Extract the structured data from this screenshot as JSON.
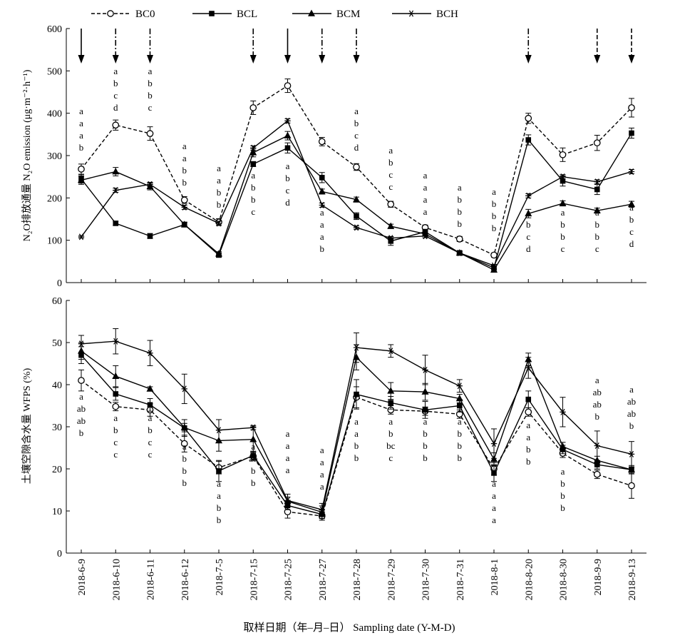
{
  "chart_data": [
    {
      "type": "line",
      "ylabel": "N₂O排放通量 N₂O emission (μg·m⁻²·h⁻¹)",
      "ylim": [
        0,
        600
      ],
      "yticks": [
        0,
        100,
        200,
        300,
        400,
        500,
        600
      ],
      "categories": [
        "2018-6-9",
        "2018-6-10",
        "2018-6-11",
        "2018-6-12",
        "2018-7-5",
        "2018-7-15",
        "2018-7-25",
        "2018-7-27",
        "2018-7-28",
        "2018-7-29",
        "2018-7-30",
        "2018-7-31",
        "2018-8-1",
        "2018-8-20",
        "2018-8-30",
        "2018-9-9",
        "2018-9-13"
      ],
      "legend": {
        "placement": "top",
        "entries": [
          "BC0",
          "BCL",
          "BCM",
          "BCH"
        ]
      },
      "series": [
        {
          "name": "BC0",
          "values": [
            268,
            372,
            352,
            195,
            143,
            413,
            465,
            333,
            273,
            185,
            130,
            103,
            65,
            388,
            302,
            330,
            413
          ],
          "errors": [
            12,
            12,
            16,
            8,
            8,
            16,
            16,
            10,
            8,
            7,
            6,
            6,
            5,
            12,
            16,
            18,
            22
          ]
        },
        {
          "name": "BCL",
          "values": [
            245,
            140,
            110,
            137,
            65,
            280,
            318,
            248,
            157,
            98,
            120,
            70,
            35,
            337,
            240,
            220,
            353
          ],
          "errors": [
            10,
            5,
            6,
            6,
            5,
            6,
            12,
            12,
            8,
            10,
            6,
            5,
            4,
            12,
            12,
            12,
            12
          ]
        },
        {
          "name": "BCM",
          "values": [
            242,
            262,
            227,
            137,
            68,
            307,
            347,
            215,
            196,
            133,
            115,
            70,
            30,
            163,
            187,
            170,
            185
          ],
          "errors": [
            10,
            10,
            8,
            5,
            5,
            10,
            10,
            6,
            6,
            5,
            5,
            4,
            3,
            10,
            6,
            6,
            7
          ]
        },
        {
          "name": "BCH",
          "values": [
            108,
            218,
            232,
            178,
            140,
            318,
            382,
            183,
            130,
            105,
            110,
            70,
            40,
            205,
            250,
            238,
            262
          ],
          "errors": [
            3,
            5,
            5,
            5,
            5,
            5,
            5,
            5,
            4,
            4,
            4,
            3,
            3,
            5,
            5,
            5,
            5
          ]
        }
      ],
      "arrows": [
        {
          "index": 0,
          "style": "solid"
        },
        {
          "index": 1,
          "style": "dashdot"
        },
        {
          "index": 2,
          "style": "dashdot"
        },
        {
          "index": 5,
          "style": "dashdot"
        },
        {
          "index": 6,
          "style": "solid"
        },
        {
          "index": 7,
          "style": "dashdot"
        },
        {
          "index": 8,
          "style": "dashdot"
        },
        {
          "index": 13,
          "style": "dashdot"
        },
        {
          "index": 15,
          "style": "dashed"
        },
        {
          "index": 16,
          "style": "dashed"
        }
      ],
      "significance": [
        {
          "index": 0,
          "letters": [
            "a",
            "a",
            "a",
            "b"
          ],
          "top": 160
        },
        {
          "index": 1,
          "letters": [
            "a",
            "b",
            "c",
            "d"
          ],
          "top": 104
        },
        {
          "index": 2,
          "letters": [
            "a",
            "b",
            "b",
            "c"
          ],
          "top": 104
        },
        {
          "index": 3,
          "letters": [
            "a",
            "a",
            "b",
            "b"
          ],
          "top": 209
        },
        {
          "index": 4,
          "letters": [
            "a",
            "a",
            "b",
            "b"
          ],
          "top": 240
        },
        {
          "index": 5,
          "letters": [
            "a",
            "b",
            "b",
            "c"
          ],
          "top": 250
        },
        {
          "index": 6,
          "letters": [
            "a",
            "b",
            "c",
            "d"
          ],
          "top": 237
        },
        {
          "index": 7,
          "letters": [
            "a",
            "a",
            "a",
            "b"
          ],
          "top": 302
        },
        {
          "index": 8,
          "letters": [
            "a",
            "b",
            "c",
            "d"
          ],
          "top": 160
        },
        {
          "index": 9,
          "letters": [
            "a",
            "b",
            "c",
            "c"
          ],
          "top": 215
        },
        {
          "index": 10,
          "letters": [
            "a",
            "a",
            "a",
            "a"
          ],
          "top": 250
        },
        {
          "index": 11,
          "letters": [
            "a",
            "b",
            "b",
            "b"
          ],
          "top": 267
        },
        {
          "index": 12,
          "letters": [
            "a",
            "b",
            "b",
            "b"
          ],
          "top": 273
        },
        {
          "index": 13,
          "letters": [
            "a",
            "b",
            "c",
            "d"
          ],
          "top": 302
        },
        {
          "index": 14,
          "letters": [
            "a",
            "b",
            "b",
            "c"
          ],
          "top": 302
        },
        {
          "index": 15,
          "letters": [
            "a",
            "b",
            "b",
            "c"
          ],
          "top": 302
        },
        {
          "index": 16,
          "letters": [
            "a",
            "b",
            "c",
            "d"
          ],
          "top": 295
        }
      ]
    },
    {
      "type": "line",
      "ylabel": "土壤空隙含水量 WFPS (%)",
      "xlabel": "取样日期（年–月–日） Sampling date (Y-M-D)",
      "ylim": [
        0,
        60
      ],
      "yticks": [
        0,
        10,
        20,
        30,
        40,
        50,
        60
      ],
      "categories": [
        "2018-6-9",
        "2018-6-10",
        "2018-6-11",
        "2018-6-12",
        "2018-7-5",
        "2018-7-15",
        "2018-7-25",
        "2018-7-27",
        "2018-7-28",
        "2018-7-29",
        "2018-7-30",
        "2018-7-31",
        "2018-8-1",
        "2018-8-20",
        "2018-8-30",
        "2018-9-9",
        "2018-9-13"
      ],
      "series": [
        {
          "name": "BC0",
          "values": [
            41,
            34.8,
            34,
            26,
            20.3,
            23,
            9.8,
            8.8,
            37,
            34,
            33.7,
            33,
            20,
            33.5,
            23.7,
            18.7,
            16
          ],
          "errors": [
            2.5,
            1,
            1.5,
            2,
            1.5,
            1,
            1.5,
            1,
            2.5,
            1,
            1,
            1,
            1.5,
            1,
            1,
            1,
            3
          ]
        },
        {
          "name": "BCL",
          "values": [
            47,
            37.8,
            35.2,
            29.7,
            19.5,
            23.2,
            11.3,
            9.2,
            37.7,
            35.7,
            34,
            35,
            19,
            36.5,
            24.6,
            21,
            19.8
          ],
          "errors": [
            2,
            1.5,
            1.5,
            2,
            2.5,
            1,
            1,
            1,
            3.5,
            1.5,
            2,
            1.5,
            2,
            2,
            1,
            1,
            1
          ]
        },
        {
          "name": "BCM",
          "values": [
            48,
            42,
            39,
            29.8,
            26.7,
            27,
            12.3,
            9.7,
            46.5,
            38.5,
            38.3,
            36.7,
            22.3,
            46,
            25.3,
            22,
            19.8
          ],
          "errors": [
            2,
            2.5,
            0.5,
            1,
            2.5,
            3,
            1,
            1.5,
            3,
            2,
            2,
            1,
            1.5,
            1.5,
            1,
            1,
            0.5
          ]
        },
        {
          "name": "BCH",
          "values": [
            49.7,
            50.3,
            47.5,
            39,
            29.2,
            29.8,
            12.5,
            10.3,
            48.8,
            48,
            43.5,
            39.7,
            26,
            44,
            33.5,
            25.5,
            23.5
          ],
          "errors": [
            2,
            3,
            3,
            3.5,
            2.5,
            0.5,
            1.5,
            1.5,
            3.5,
            1.5,
            3.5,
            1.5,
            3.5,
            2.5,
            3.5,
            3.5,
            3
          ]
        }
      ],
      "significance": [
        {
          "index": 0,
          "letters": [
            "a",
            "ab",
            "ab",
            "b"
          ],
          "top": 560
        },
        {
          "index": 1,
          "letters": [
            "a",
            "b",
            "c",
            "c"
          ],
          "top": 590
        },
        {
          "index": 2,
          "letters": [
            "a",
            "b",
            "c",
            "c"
          ],
          "top": 590
        },
        {
          "index": 3,
          "letters": [
            "a",
            "b",
            "b",
            "b"
          ],
          "top": 630
        },
        {
          "index": 4,
          "letters": [
            "a",
            "a",
            "b",
            "b"
          ],
          "top": 682
        },
        {
          "index": 5,
          "letters": [
            "a",
            "ab",
            "b",
            "b"
          ],
          "top": 630
        },
        {
          "index": 6,
          "letters": [
            "a",
            "a",
            "a",
            "a"
          ],
          "top": 612
        },
        {
          "index": 7,
          "letters": [
            "a",
            "a",
            "a",
            "a"
          ],
          "top": 635
        },
        {
          "index": 8,
          "letters": [
            "a",
            "a",
            "b",
            "b"
          ],
          "top": 595
        },
        {
          "index": 9,
          "letters": [
            "a",
            "b",
            "bc",
            "c"
          ],
          "top": 595
        },
        {
          "index": 10,
          "letters": [
            "a",
            "b",
            "b",
            "b"
          ],
          "top": 595
        },
        {
          "index": 11,
          "letters": [
            "a",
            "b",
            "b",
            "b"
          ],
          "top": 595
        },
        {
          "index": 12,
          "letters": [
            "a",
            "a",
            "a",
            "a"
          ],
          "top": 682
        },
        {
          "index": 13,
          "letters": [
            "a",
            "a",
            "b",
            "b"
          ],
          "top": 600
        },
        {
          "index": 14,
          "letters": [
            "a",
            "b",
            "b",
            "b"
          ],
          "top": 665
        },
        {
          "index": 15,
          "letters": [
            "a",
            "ab",
            "ab",
            "b"
          ],
          "top": 537
        },
        {
          "index": 16,
          "letters": [
            "a",
            "ab",
            "ab",
            "b"
          ],
          "top": 550
        }
      ]
    }
  ],
  "text": {
    "top_ylabel_cn": "N₂O排放通量 N₂O emission (μg·m⁻²·h⁻¹)",
    "bottom_ylabel": "土壤空隙含水量 WFPS (%)",
    "xlabel": "取样日期（年–月–日） Sampling date (Y-M-D)"
  }
}
